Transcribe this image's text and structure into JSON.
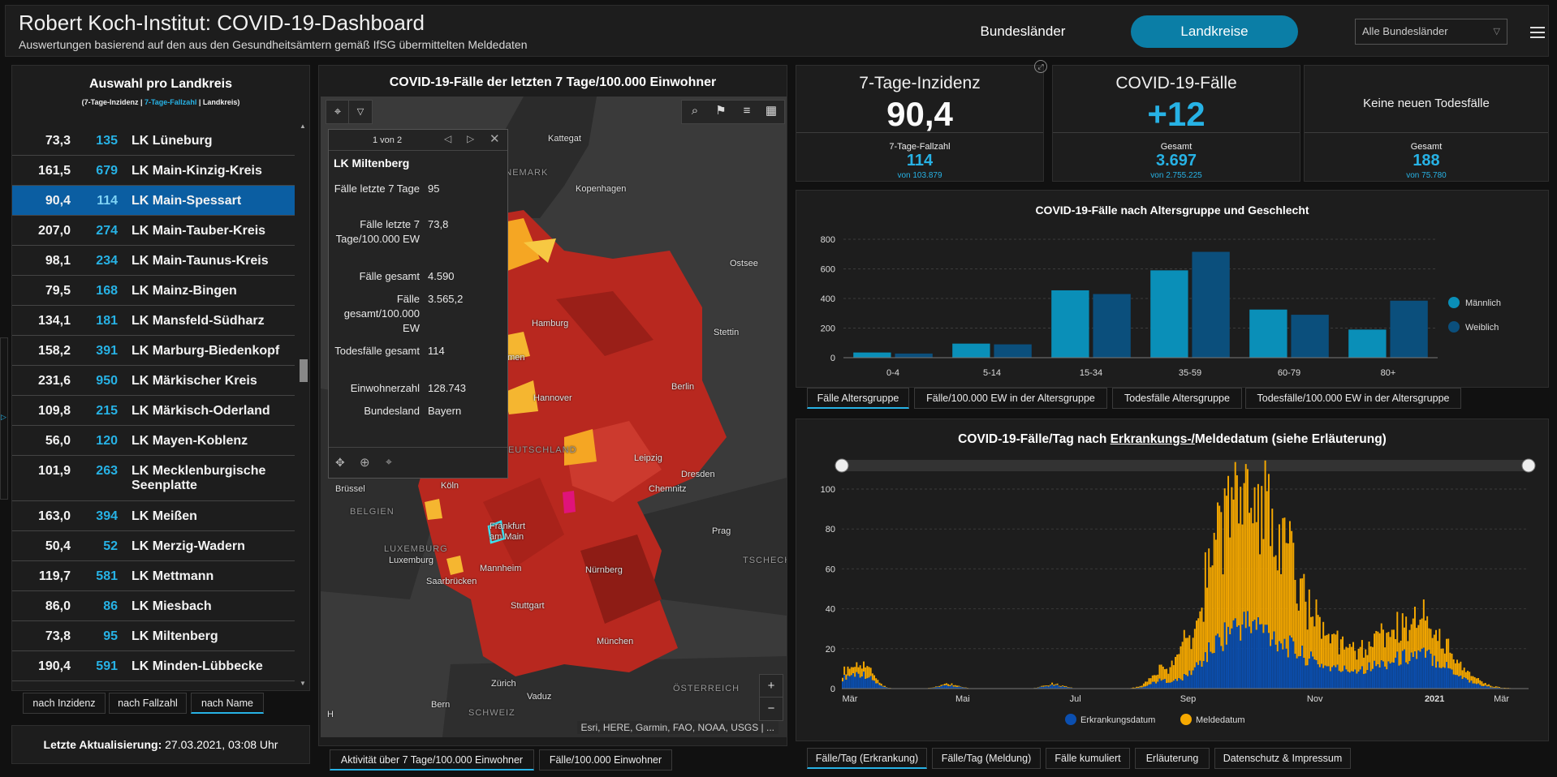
{
  "header": {
    "title": "Robert Koch-Institut: COVID-19-Dashboard",
    "subtitle": "Auswertungen basierend auf den aus den Gesundheitsämtern gemäß IfSG übermittelten Meldedaten",
    "nav": [
      "Bundesländer",
      "Landkreise"
    ],
    "region_select": "Alle Bundesländer"
  },
  "list": {
    "title": "Auswahl pro Landkreis",
    "sub_a": "(7-Tage-Inzidenz | ",
    "sub_b": "7-Tage-Fallzahl",
    "sub_c": " | Landkreis)",
    "rows": [
      {
        "inz": "73,3",
        "fz": "135",
        "name": "LK Lüneburg"
      },
      {
        "inz": "161,5",
        "fz": "679",
        "name": "LK Main-Kinzig-Kreis"
      },
      {
        "inz": "90,4",
        "fz": "114",
        "name": "LK Main-Spessart"
      },
      {
        "inz": "207,0",
        "fz": "274",
        "name": "LK Main-Tauber-Kreis"
      },
      {
        "inz": "98,1",
        "fz": "234",
        "name": "LK Main-Taunus-Kreis"
      },
      {
        "inz": "79,5",
        "fz": "168",
        "name": "LK Mainz-Bingen"
      },
      {
        "inz": "134,1",
        "fz": "181",
        "name": "LK Mansfeld-Südharz"
      },
      {
        "inz": "158,2",
        "fz": "391",
        "name": "LK Marburg-Biedenkopf"
      },
      {
        "inz": "231,6",
        "fz": "950",
        "name": "LK Märkischer Kreis"
      },
      {
        "inz": "109,8",
        "fz": "215",
        "name": "LK Märkisch-Oderland"
      },
      {
        "inz": "56,0",
        "fz": "120",
        "name": "LK Mayen-Koblenz"
      },
      {
        "inz": "101,9",
        "fz": "263",
        "name": "LK Mecklenburgische Seenplatte"
      },
      {
        "inz": "163,0",
        "fz": "394",
        "name": "LK Meißen"
      },
      {
        "inz": "50,4",
        "fz": "52",
        "name": "LK Merzig-Wadern"
      },
      {
        "inz": "119,7",
        "fz": "581",
        "name": "LK Mettmann"
      },
      {
        "inz": "86,0",
        "fz": "86",
        "name": "LK Miesbach"
      },
      {
        "inz": "73,8",
        "fz": "95",
        "name": "LK Miltenberg"
      },
      {
        "inz": "190,4",
        "fz": "591",
        "name": "LK Minden-Lübbecke"
      }
    ],
    "sort_tabs": [
      "nach Inzidenz",
      "nach Fallzahl",
      "nach Name"
    ]
  },
  "update": {
    "label": "Letzte Aktualisierung:",
    "value": " 27.03.2021, 03:08 Uhr"
  },
  "map": {
    "title": "COVID-19-Fälle der letzten 7 Tage/100.000 Einwohner",
    "popup": {
      "pager": "1 von 2",
      "title": "LK Miltenberg",
      "fields": [
        {
          "k": "Fälle letzte 7 Tage",
          "v": "95"
        },
        {
          "k": "Fälle letzte 7 Tage/100.000 EW",
          "v": "73,8"
        },
        {
          "k": "Fälle gesamt",
          "v": "4.590"
        },
        {
          "k": "Fälle gesamt/100.000 EW",
          "v": "3.565,2"
        },
        {
          "k": "Todesfälle gesamt",
          "v": "114"
        },
        {
          "k": "Einwohnerzahl",
          "v": "128.743"
        },
        {
          "k": "Bundesland",
          "v": "Bayern"
        }
      ]
    },
    "labels": {
      "kattegat": "Kattegat",
      "daenemark": "DÄNEMARK",
      "kopenhagen": "Kopenhagen",
      "ostsee": "Ostsee",
      "hamburg": "Hamburg",
      "stettin": "Stettin",
      "bremen": "emen",
      "hannover": "Hannover",
      "berlin": "Berlin",
      "deutschland": "DEUTSCHLAND",
      "leipzig": "Leipzig",
      "dresden": "Dresden",
      "koeln": "Köln",
      "bruessel": "Brüssel",
      "chemnitz": "Chemnitz",
      "belgien": "BELGIEN",
      "frankfurt": "Frankfurt am Main",
      "prag": "Prag",
      "luxemburg_c": "LUXEMBURG",
      "luxemburg": "Luxemburg",
      "tschechien": "TSCHECH",
      "mannheim": "Mannheim",
      "saarbruecken": "Saarbrücken",
      "nuernberg": "Nürnberg",
      "stuttgart": "Stuttgart",
      "muenchen": "München",
      "zuerich": "Zürich",
      "oesterreich": "ÖSTERREICH",
      "bern": "Bern",
      "vaduz": "Vaduz",
      "schweiz": "SCHWEIZ",
      "h": "H"
    },
    "attribution": "Esri, HERE, Garmin, FAO, NOAA, USGS | ...",
    "tabs": [
      "Aktivität über 7 Tage/100.000 Einwohner",
      "Fälle/100.000 Einwohner"
    ]
  },
  "kpis": [
    {
      "title": "7-Tage-Inzidenz",
      "big": "90,4",
      "label": "7-Tage-Fallzahl",
      "mid": "114",
      "small": "von 103.879"
    },
    {
      "title": "COVID-19-Fälle",
      "big": "+12",
      "label": "Gesamt",
      "mid": "3.697",
      "small": "von 2.755.225"
    },
    {
      "title": "Keine neuen Todesfälle",
      "big": "",
      "label": "Gesamt",
      "mid": "188",
      "small": "von 75.780"
    }
  ],
  "colors": {
    "male": "#0a8fb8",
    "female": "#0b4f7c",
    "erkrankung": "#0b4fb0",
    "melde": "#f5a800",
    "accent": "#27b2e5"
  },
  "chart_data": [
    {
      "type": "bar",
      "title": "COVID-19-Fälle nach Altersgruppe und Geschlecht",
      "categories": [
        "0-4",
        "5-14",
        "15-34",
        "35-59",
        "60-79",
        "80+"
      ],
      "series": [
        {
          "name": "Männlich",
          "values": [
            35,
            95,
            455,
            590,
            325,
            190
          ]
        },
        {
          "name": "Weiblich",
          "values": [
            28,
            90,
            430,
            715,
            290,
            385
          ]
        }
      ],
      "ylim": [
        0,
        800
      ],
      "yticks": [
        "0",
        "200",
        "400",
        "600",
        "800"
      ],
      "grid": true,
      "legend": "right",
      "tabs": [
        "Fälle Altersgruppe",
        "Fälle/100.000 EW in der Altersgruppe",
        "Todesfälle Altersgruppe",
        "Todesfälle/100.000 EW in der Altersgruppe"
      ]
    },
    {
      "type": "bar",
      "title_a": "COVID-19-Fälle/Tag nach ",
      "title_b": "Erkrankungs-/",
      "title_c": "Meldedatum (siehe Erläuterung)",
      "x_ticks": [
        "Mär",
        "Mai",
        "Jul",
        "Sep",
        "Nov",
        "2021",
        "Mär"
      ],
      "ylim": [
        0,
        100
      ],
      "yticks": [
        "0",
        "20",
        "40",
        "60",
        "80",
        "100"
      ],
      "stacked": true,
      "grid": true,
      "legend": "bottom",
      "series": [
        {
          "name": "Erkrankungsdatum",
          "peaks": [
            [
              2,
              6
            ],
            [
              12,
              8
            ],
            [
              60,
              2
            ],
            [
              120,
              2
            ],
            [
              180,
              4
            ],
            [
              220,
              28
            ],
            [
              240,
              22
            ],
            [
              265,
              12
            ],
            [
              300,
              10
            ],
            [
              330,
              20
            ]
          ]
        },
        {
          "name": "Meldedatum",
          "peaks": [
            [
              2,
              4
            ],
            [
              12,
              6
            ],
            [
              60,
              1
            ],
            [
              120,
              1
            ],
            [
              180,
              4
            ],
            [
              215,
              50
            ],
            [
              240,
              60
            ],
            [
              265,
              20
            ],
            [
              300,
              12
            ],
            [
              330,
              22
            ]
          ]
        }
      ],
      "tabs": [
        "Fälle/Tag (Erkrankung)",
        "Fälle/Tag (Meldung)",
        "Fälle kumuliert",
        "Erläuterung",
        "Datenschutz & Impressum"
      ]
    }
  ]
}
